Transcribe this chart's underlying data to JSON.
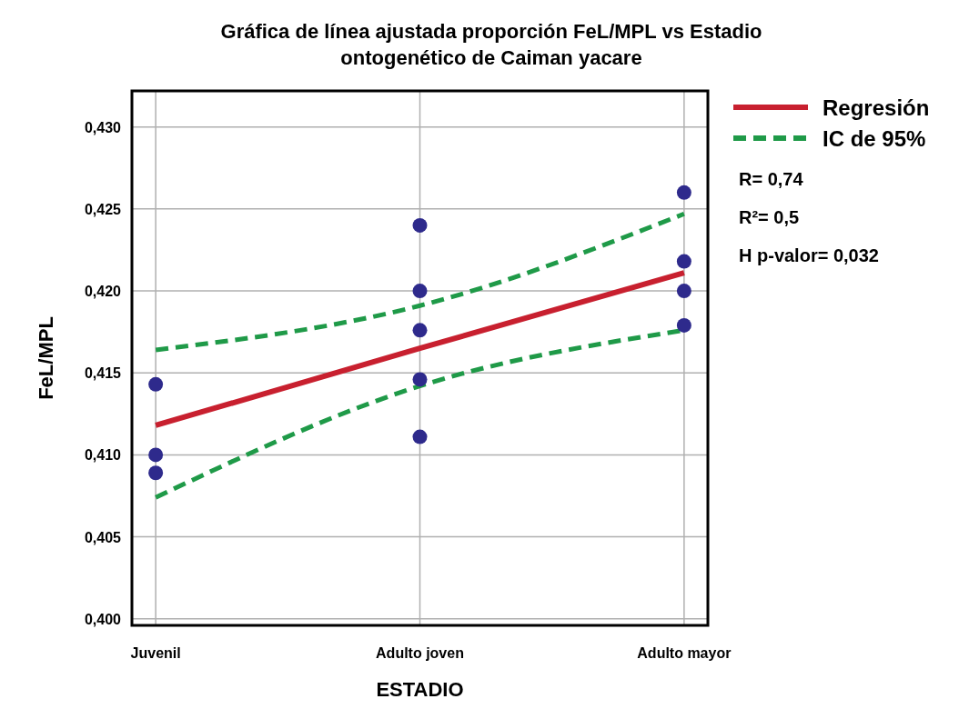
{
  "chart_data": {
    "type": "scatter",
    "title": "Gráfica de línea ajustada proporción FeL/MPL vs Estadio ontogenético de Caiman yacare",
    "xlabel": "ESTADIO",
    "ylabel": "FeL/MPL",
    "categories": [
      "Juvenil",
      "Adulto joven",
      "Adulto mayor"
    ],
    "series": [
      {
        "type": "line",
        "name": "Regresión",
        "color": "#c8202f",
        "line_style": "solid",
        "x": [
          "Juvenil",
          "Adulto joven",
          "Adulto mayor"
        ],
        "values": [
          0.4118,
          0.4165,
          0.4211
        ]
      },
      {
        "type": "line",
        "name": "IC de 95%",
        "color": "#1f9a48",
        "line_style": "dashed",
        "x": [
          "Juvenil",
          "Adulto joven",
          "Adulto mayor"
        ],
        "values": [
          0.4164,
          0.4191,
          0.4247
        ]
      },
      {
        "type": "line",
        "color": "#1f9a48",
        "line_style": "dashed",
        "x": [
          "Juvenil",
          "Adulto joven",
          "Adulto mayor"
        ],
        "values": [
          0.4074,
          0.4142,
          0.4176
        ]
      },
      {
        "color": "#2e2a8c",
        "marker": "circle",
        "x": [
          "Juvenil",
          "Juvenil",
          "Juvenil",
          "Adulto joven",
          "Adulto joven",
          "Adulto joven",
          "Adulto joven",
          "Adulto joven",
          "Adulto mayor",
          "Adulto mayor",
          "Adulto mayor",
          "Adulto mayor"
        ],
        "values": [
          0.4143,
          0.41,
          0.4089,
          0.424,
          0.42,
          0.4176,
          0.4146,
          0.4111,
          0.426,
          0.4218,
          0.42,
          0.4179
        ]
      }
    ],
    "ylim": [
      0.3996,
      0.4322
    ],
    "yticks": [
      {
        "value": 0.4,
        "label": "0,400"
      },
      {
        "value": 0.405,
        "label": "0,405"
      },
      {
        "value": 0.41,
        "label": "0,410"
      },
      {
        "value": 0.415,
        "label": "0,415"
      },
      {
        "value": 0.42,
        "label": "0,420"
      },
      {
        "value": 0.425,
        "label": "0,425"
      },
      {
        "value": 0.43,
        "label": "0,430"
      }
    ],
    "grid": true,
    "legend": "right",
    "annotations": [
      "R= 0,74",
      "R²= 0,5",
      "H p-valor= 0,032"
    ]
  }
}
